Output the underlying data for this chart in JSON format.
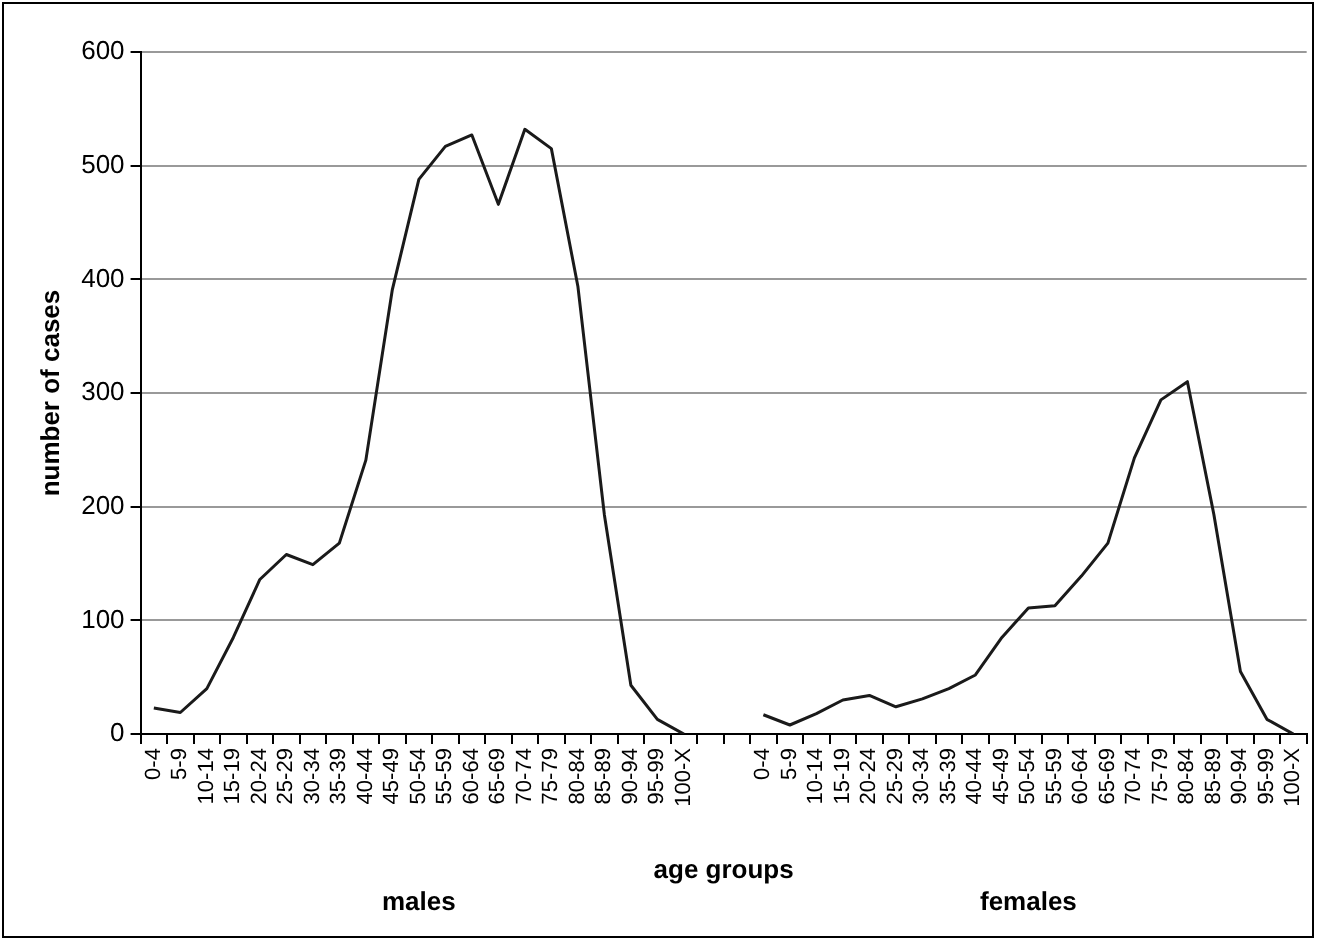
{
  "chart_data": {
    "type": "line",
    "xlabel": "age groups",
    "ylabel": "number of cases",
    "categories": [
      "0-4",
      "5-9",
      "10-14",
      "15-19",
      "20-24",
      "25-29",
      "30-34",
      "35-39",
      "40-44",
      "45-49",
      "50-54",
      "55-59",
      "60-64",
      "65-69",
      "70-74",
      "75-79",
      "80-84",
      "85-89",
      "90-94",
      "95-99",
      "100-X",
      null,
      null,
      "0-4",
      "5-9",
      "10-14",
      "15-19",
      "20-24",
      "25-29",
      "30-34",
      "35-39",
      "40-44",
      "45-49",
      "50-54",
      "55-59",
      "60-64",
      "65-69",
      "70-74",
      "75-79",
      "80-84",
      "85-89",
      "90-94",
      "95-99",
      "100-X"
    ],
    "series": [
      {
        "color": "#1a1a1a",
        "values": [
          23,
          19,
          40,
          85,
          136,
          158,
          149,
          168,
          241,
          391,
          488,
          517,
          527,
          466,
          532,
          515,
          394,
          193,
          43,
          13,
          0,
          null,
          null,
          17,
          8,
          18,
          30,
          34,
          24,
          31,
          40,
          52,
          85,
          111,
          113,
          139,
          168,
          243,
          294,
          310,
          193,
          55,
          13,
          0
        ]
      }
    ],
    "ylim": [
      0,
      600
    ],
    "yticks": [
      0,
      100,
      200,
      300,
      400,
      500,
      600
    ],
    "grid": "y",
    "legend": false,
    "marker": "none",
    "line_style": "solid",
    "annotations": [
      "males",
      "females"
    ]
  }
}
